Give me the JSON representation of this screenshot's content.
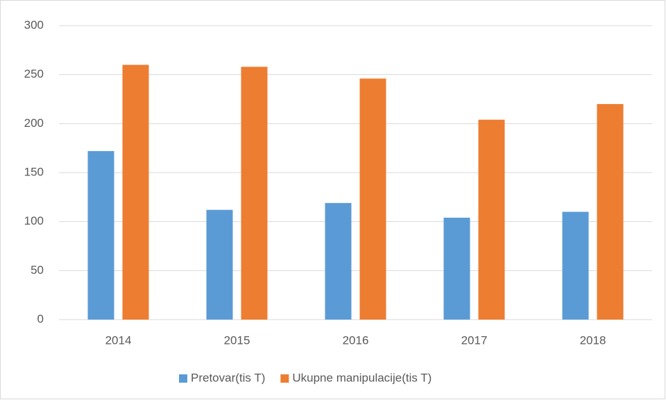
{
  "chart_data": {
    "type": "bar",
    "categories": [
      "2014",
      "2015",
      "2016",
      "2017",
      "2018"
    ],
    "series": [
      {
        "name": "Pretovar(tis T)",
        "color": "#5b9bd5",
        "values": [
          172,
          112,
          119,
          104,
          110
        ]
      },
      {
        "name": "Ukupne manipulacije(tis T)",
        "color": "#ed7d31",
        "values": [
          260,
          258,
          246,
          204,
          220
        ]
      }
    ],
    "ylim": [
      0,
      300
    ],
    "yticks": [
      0,
      50,
      100,
      150,
      200,
      250,
      300
    ],
    "grid": true,
    "legend": "bottom"
  }
}
